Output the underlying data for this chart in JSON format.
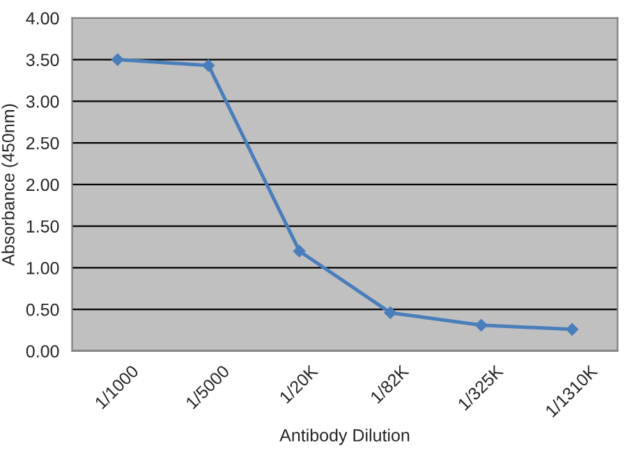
{
  "chart_data": {
    "type": "line",
    "xlabel": "Antibody Dilution",
    "ylabel": "Absorbance (450nm)",
    "categories": [
      "1/1000",
      "1/5000",
      "1/20K",
      "1/82K",
      "1/325K",
      "1/1310K"
    ],
    "series": [
      {
        "color": "#4a7ebb",
        "values": [
          3.5,
          3.43,
          1.2,
          0.46,
          0.31,
          0.26
        ]
      }
    ],
    "ylim": [
      0,
      4
    ],
    "yticks": [
      {
        "value": 0,
        "label": "0.00"
      },
      {
        "value": 0.5,
        "label": "0.50"
      },
      {
        "value": 1,
        "label": "1.00"
      },
      {
        "value": 1.5,
        "label": "1.50"
      },
      {
        "value": 2,
        "label": "2.00"
      },
      {
        "value": 2.5,
        "label": "2.50"
      },
      {
        "value": 3,
        "label": "3.00"
      },
      {
        "value": 3.5,
        "label": "3.50"
      },
      {
        "value": 4,
        "label": "4.00"
      }
    ],
    "grid": "y",
    "marker": "diamond",
    "line_style": "solid"
  }
}
